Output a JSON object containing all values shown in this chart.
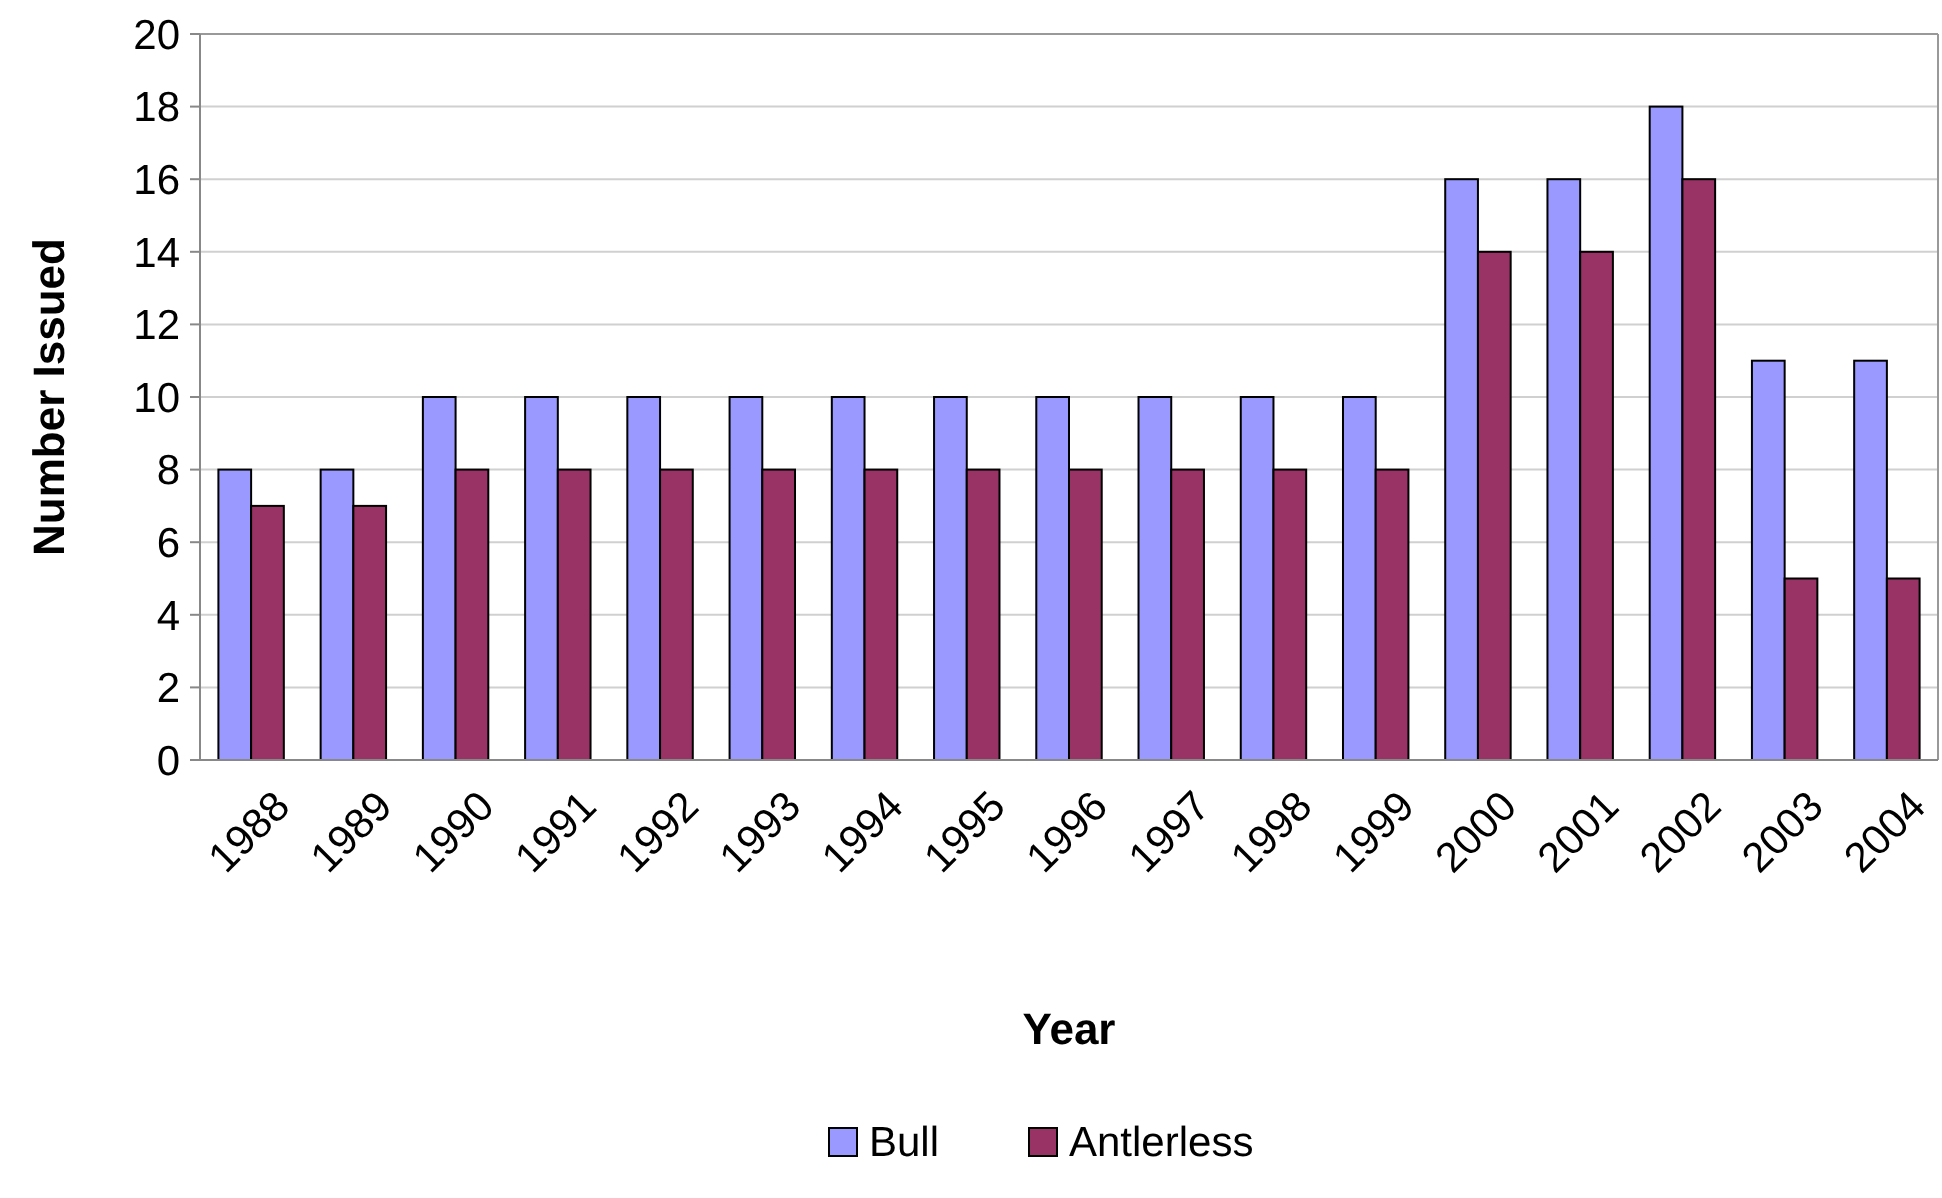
{
  "chart_data": {
    "type": "bar",
    "xlabel": "Year",
    "ylabel": "Number Issued",
    "categories": [
      "1988",
      "1989",
      "1990",
      "1991",
      "1992",
      "1993",
      "1994",
      "1995",
      "1996",
      "1997",
      "1998",
      "1999",
      "2000",
      "2001",
      "2002",
      "2003",
      "2004"
    ],
    "series": [
      {
        "name": "Bull",
        "color": "#9999ff",
        "values": [
          8,
          8,
          10,
          10,
          10,
          10,
          10,
          10,
          10,
          10,
          10,
          10,
          16,
          16,
          18,
          11,
          11
        ]
      },
      {
        "name": "Antlerless",
        "color": "#993366",
        "values": [
          7,
          7,
          8,
          8,
          8,
          8,
          8,
          8,
          8,
          8,
          8,
          8,
          14,
          14,
          16,
          5,
          5
        ]
      }
    ],
    "ylim": [
      0,
      20
    ],
    "yticks": [
      0,
      2,
      4,
      6,
      8,
      10,
      12,
      14,
      16,
      18,
      20
    ],
    "grid": "y",
    "legend": "bottom"
  }
}
